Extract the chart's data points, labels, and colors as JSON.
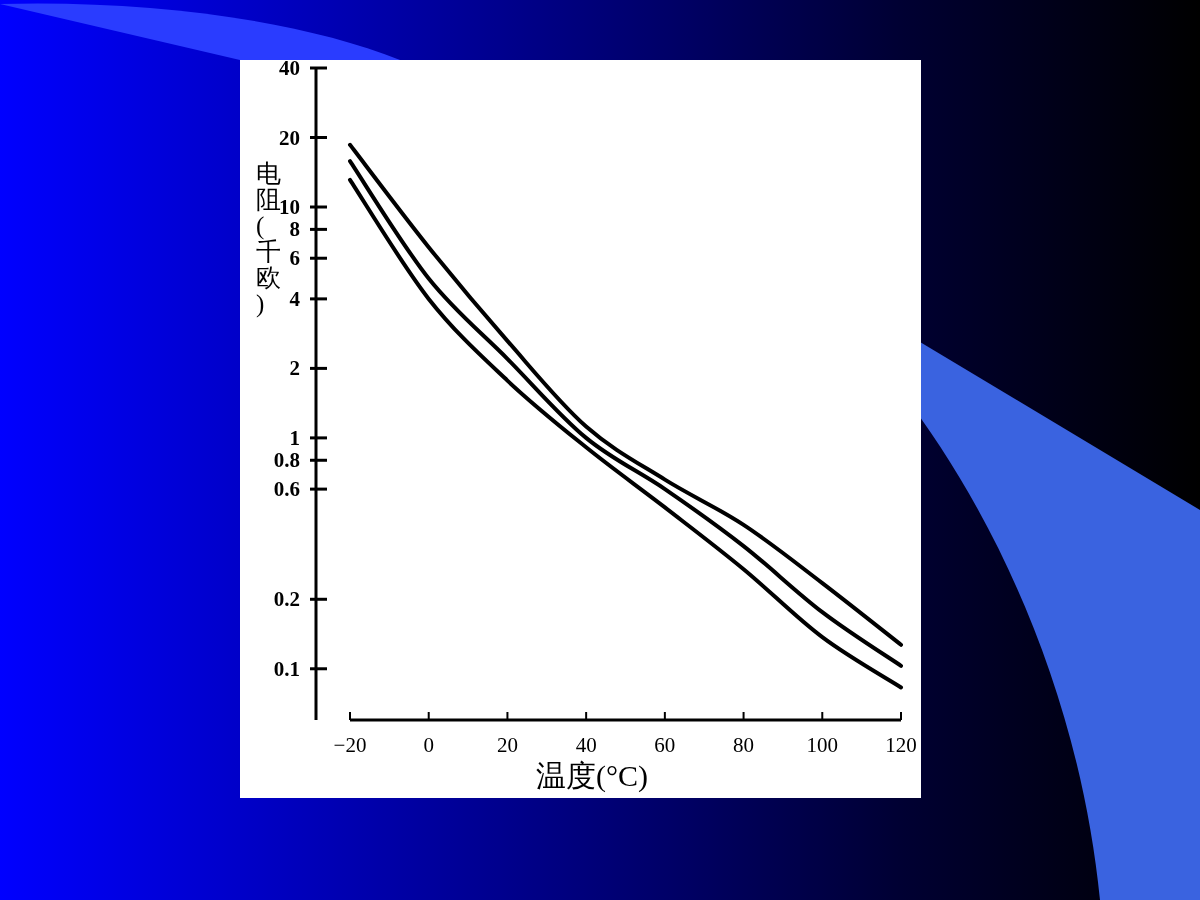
{
  "chart_data": {
    "type": "line",
    "xlabel": "温度(°C)",
    "ylabel": "电阻(千欧)",
    "log": "y",
    "line_style": "solid",
    "x": [
      -20,
      0,
      20,
      40,
      60,
      80,
      100,
      120
    ],
    "series": [
      {
        "color": "#000000",
        "values": [
          18.6,
          6.7,
          2.63,
          1.12,
          0.66,
          0.42,
          0.235,
          0.127
        ]
      },
      {
        "color": "#000000",
        "values": [
          15.8,
          4.9,
          2.2,
          1.0,
          0.6,
          0.34,
          0.176,
          0.103
        ]
      },
      {
        "color": "#000000",
        "values": [
          13.1,
          4.0,
          1.77,
          0.91,
          0.5,
          0.27,
          0.137,
          0.083
        ]
      }
    ],
    "xlim": [
      -20,
      120
    ],
    "xticks": [
      -20,
      0,
      20,
      40,
      60,
      80,
      100,
      120
    ],
    "ylim": [
      0.06,
      40
    ],
    "yticks": [
      0.1,
      0.2,
      0.6,
      0.8,
      1,
      2,
      4,
      6,
      8,
      10,
      20,
      40
    ]
  }
}
